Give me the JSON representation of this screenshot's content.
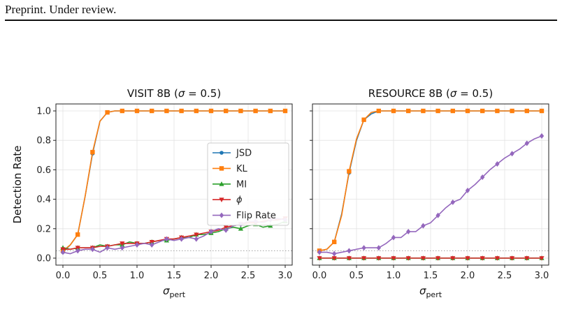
{
  "header": {
    "text": "Preprint. Under review."
  },
  "chart_data": [
    {
      "type": "line",
      "title_main": "VISIT 8B (",
      "title_param": "σ",
      "title_tail": " = 0.5)",
      "ylabel": "Detection Rate",
      "xlabel_main": "σ",
      "xlabel_sub": "pert",
      "xlim": [
        0,
        3.0
      ],
      "ylim": [
        0,
        1.0
      ],
      "xticks": [
        "0.0",
        "0.5",
        "1.0",
        "1.5",
        "2.0",
        "2.5",
        "3.0"
      ],
      "yticks": [
        "0.0",
        "0.2",
        "0.4",
        "0.6",
        "0.8",
        "1.0"
      ],
      "grid": true,
      "legend": "center-right",
      "baseline": 0.05,
      "x": [
        0,
        0.1,
        0.2,
        0.3,
        0.4,
        0.5,
        0.6,
        0.7,
        0.8,
        0.9,
        1.0,
        1.1,
        1.2,
        1.3,
        1.4,
        1.5,
        1.6,
        1.7,
        1.8,
        1.9,
        2.0,
        2.1,
        2.2,
        2.3,
        2.4,
        2.5,
        2.6,
        2.7,
        2.8,
        2.9,
        3.0
      ],
      "series": [
        {
          "name": "JSD",
          "marker": "circle",
          "color": "#1f77b4",
          "values": [
            0.04,
            0.09,
            0.16,
            0.42,
            0.71,
            0.93,
            0.99,
            1.0,
            1.0,
            1.0,
            1.0,
            1.0,
            1.0,
            1.0,
            1.0,
            1.0,
            1.0,
            1.0,
            1.0,
            1.0,
            1.0,
            1.0,
            1.0,
            1.0,
            1.0,
            1.0,
            1.0,
            1.0,
            1.0,
            1.0,
            1.0
          ]
        },
        {
          "name": "KL",
          "marker": "square",
          "color": "#ff7f0e",
          "values": [
            0.05,
            0.09,
            0.16,
            0.42,
            0.72,
            0.93,
            0.99,
            1.0,
            1.0,
            1.0,
            1.0,
            1.0,
            1.0,
            1.0,
            1.0,
            1.0,
            1.0,
            1.0,
            1.0,
            1.0,
            1.0,
            1.0,
            1.0,
            1.0,
            1.0,
            1.0,
            1.0,
            1.0,
            1.0,
            1.0,
            1.0
          ]
        },
        {
          "name": "MI",
          "marker": "triangle-up",
          "color": "#2ca02c",
          "values": [
            0.07,
            0.06,
            0.07,
            0.07,
            0.07,
            0.09,
            0.08,
            0.09,
            0.09,
            0.11,
            0.1,
            0.1,
            0.11,
            0.12,
            0.12,
            0.13,
            0.14,
            0.14,
            0.16,
            0.16,
            0.17,
            0.18,
            0.2,
            0.21,
            0.2,
            0.22,
            0.23,
            0.21,
            0.22,
            0.23,
            0.25
          ]
        },
        {
          "name": "ϕ",
          "marker": "triangle-down",
          "color": "#d62728",
          "values": [
            0.06,
            0.06,
            0.07,
            0.07,
            0.07,
            0.08,
            0.08,
            0.09,
            0.1,
            0.1,
            0.1,
            0.1,
            0.11,
            0.12,
            0.13,
            0.13,
            0.14,
            0.15,
            0.16,
            0.17,
            0.18,
            0.19,
            0.21,
            0.22,
            0.23,
            0.24,
            0.24,
            0.25,
            0.26,
            0.26,
            0.27
          ]
        },
        {
          "name": "Flip Rate",
          "marker": "diamond",
          "color": "#9467bd",
          "values": [
            0.04,
            0.03,
            0.05,
            0.06,
            0.06,
            0.04,
            0.07,
            0.06,
            0.07,
            0.08,
            0.09,
            0.1,
            0.09,
            0.11,
            0.13,
            0.12,
            0.13,
            0.14,
            0.13,
            0.15,
            0.18,
            0.2,
            0.19,
            0.22,
            0.23,
            0.25,
            0.25,
            0.24,
            0.26,
            0.27,
            0.26
          ]
        }
      ]
    },
    {
      "type": "line",
      "title_main": "RESOURCE 8B (",
      "title_param": "σ",
      "title_tail": " = 0.5)",
      "ylabel": "",
      "xlabel_main": "σ",
      "xlabel_sub": "pert",
      "xlim": [
        0,
        3.0
      ],
      "ylim": [
        0,
        1.0
      ],
      "xticks": [
        "0.0",
        "0.5",
        "1.0",
        "1.5",
        "2.0",
        "2.5",
        "3.0"
      ],
      "yticks": [
        "0.0",
        "0.2",
        "0.4",
        "0.6",
        "0.8",
        "1.0"
      ],
      "grid": true,
      "legend": "none",
      "baseline": 0.05,
      "x": [
        0,
        0.1,
        0.2,
        0.3,
        0.4,
        0.5,
        0.6,
        0.7,
        0.8,
        0.9,
        1.0,
        1.1,
        1.2,
        1.3,
        1.4,
        1.5,
        1.6,
        1.7,
        1.8,
        1.9,
        2.0,
        2.1,
        2.2,
        2.3,
        2.4,
        2.5,
        2.6,
        2.7,
        2.8,
        2.9,
        3.0
      ],
      "series": [
        {
          "name": "JSD",
          "marker": "circle",
          "color": "#1f77b4",
          "values": [
            0.05,
            0.06,
            0.11,
            0.3,
            0.58,
            0.8,
            0.94,
            0.98,
            1.0,
            1.0,
            1.0,
            1.0,
            1.0,
            1.0,
            1.0,
            1.0,
            1.0,
            1.0,
            1.0,
            1.0,
            1.0,
            1.0,
            1.0,
            1.0,
            1.0,
            1.0,
            1.0,
            1.0,
            1.0,
            1.0,
            1.0
          ]
        },
        {
          "name": "KL",
          "marker": "square",
          "color": "#ff7f0e",
          "values": [
            0.05,
            0.06,
            0.11,
            0.29,
            0.59,
            0.81,
            0.94,
            0.99,
            1.0,
            1.0,
            1.0,
            1.0,
            1.0,
            1.0,
            1.0,
            1.0,
            1.0,
            1.0,
            1.0,
            1.0,
            1.0,
            1.0,
            1.0,
            1.0,
            1.0,
            1.0,
            1.0,
            1.0,
            1.0,
            1.0,
            1.0
          ]
        },
        {
          "name": "MI",
          "marker": "triangle-up",
          "color": "#2ca02c",
          "values": [
            0.0,
            0.0,
            0.0,
            0.0,
            0.0,
            0.0,
            0.0,
            0.0,
            0.0,
            0.0,
            0.0,
            0.0,
            0.0,
            0.0,
            0.0,
            0.0,
            0.0,
            0.0,
            0.0,
            0.0,
            0.0,
            0.0,
            0.0,
            0.0,
            0.0,
            0.0,
            0.0,
            0.0,
            0.0,
            0.0,
            0.0
          ]
        },
        {
          "name": "ϕ",
          "marker": "triangle-down",
          "color": "#d62728",
          "values": [
            0.0,
            0.0,
            0.0,
            0.0,
            0.0,
            0.0,
            0.0,
            0.0,
            0.0,
            0.0,
            0.0,
            0.0,
            0.0,
            0.0,
            0.0,
            0.0,
            0.0,
            0.0,
            0.0,
            0.0,
            0.0,
            0.0,
            0.0,
            0.0,
            0.0,
            0.0,
            0.0,
            0.0,
            0.0,
            0.0,
            0.0
          ]
        },
        {
          "name": "Flip Rate",
          "marker": "diamond",
          "color": "#9467bd",
          "values": [
            0.04,
            0.04,
            0.03,
            0.04,
            0.05,
            0.06,
            0.07,
            0.07,
            0.07,
            0.1,
            0.14,
            0.14,
            0.18,
            0.18,
            0.22,
            0.24,
            0.29,
            0.34,
            0.38,
            0.4,
            0.46,
            0.5,
            0.55,
            0.6,
            0.64,
            0.68,
            0.71,
            0.74,
            0.78,
            0.81,
            0.83
          ]
        }
      ]
    }
  ]
}
